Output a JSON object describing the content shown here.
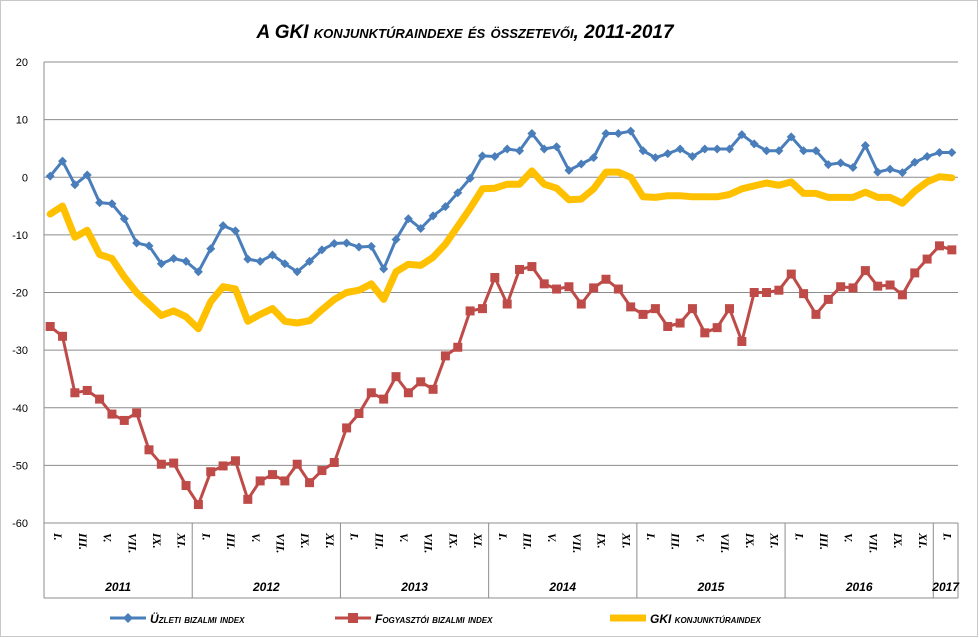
{
  "chart_data": {
    "type": "line",
    "title": "A GKI konjunktúraindexe és összetevői, 2011-2017",
    "ylim": [
      -60,
      20
    ],
    "yticks": [
      20,
      10,
      0,
      -10,
      -20,
      -30,
      -40,
      -50,
      -60
    ],
    "grid": true,
    "legend_position": "bottom",
    "month_labels": [
      "I.",
      "III.",
      "V.",
      "VII.",
      "IX.",
      "XI."
    ],
    "years": [
      "2011",
      "2012",
      "2013",
      "2014",
      "2015",
      "2016",
      "2017"
    ],
    "x": [
      "2011-01",
      "2011-02",
      "2011-03",
      "2011-04",
      "2011-05",
      "2011-06",
      "2011-07",
      "2011-08",
      "2011-09",
      "2011-10",
      "2011-11",
      "2011-12",
      "2012-01",
      "2012-02",
      "2012-03",
      "2012-04",
      "2012-05",
      "2012-06",
      "2012-07",
      "2012-08",
      "2012-09",
      "2012-10",
      "2012-11",
      "2012-12",
      "2013-01",
      "2013-02",
      "2013-03",
      "2013-04",
      "2013-05",
      "2013-06",
      "2013-07",
      "2013-08",
      "2013-09",
      "2013-10",
      "2013-11",
      "2013-12",
      "2014-01",
      "2014-02",
      "2014-03",
      "2014-04",
      "2014-05",
      "2014-06",
      "2014-07",
      "2014-08",
      "2014-09",
      "2014-10",
      "2014-11",
      "2014-12",
      "2015-01",
      "2015-02",
      "2015-03",
      "2015-04",
      "2015-05",
      "2015-06",
      "2015-07",
      "2015-08",
      "2015-09",
      "2015-10",
      "2015-11",
      "2015-12",
      "2016-01",
      "2016-02",
      "2016-03",
      "2016-04",
      "2016-05",
      "2016-06",
      "2016-07",
      "2016-08",
      "2016-09",
      "2016-10",
      "2016-11",
      "2016-12",
      "2017-01",
      "2017-02"
    ],
    "series": [
      {
        "name": "Üzleti bizalmi index",
        "color": "#4a7ebb",
        "marker": "diamond",
        "values": [
          0.2,
          2.8,
          -1.3,
          0.4,
          -4.4,
          -4.6,
          -7.2,
          -11.4,
          -11.9,
          -15.0,
          -14.1,
          -14.6,
          -16.4,
          -12.4,
          -8.4,
          -9.3,
          -14.2,
          -14.6,
          -13.5,
          -15.0,
          -16.4,
          -14.6,
          -12.6,
          -11.5,
          -11.4,
          -12.1,
          -12.0,
          -15.9,
          -10.8,
          -7.2,
          -8.9,
          -6.7,
          -5.1,
          -2.7,
          -0.2,
          3.7,
          3.6,
          4.9,
          4.6,
          7.6,
          4.9,
          5.3,
          1.2,
          2.3,
          3.4,
          7.6,
          7.6,
          8.0,
          4.6,
          3.4,
          4.1,
          4.9,
          3.6,
          4.9,
          4.9,
          4.9,
          7.4,
          5.8,
          4.6,
          4.6,
          7.0,
          4.6,
          4.6,
          2.2,
          2.5,
          1.7,
          5.5,
          0.9,
          1.4,
          0.8,
          2.6,
          3.6,
          4.3,
          4.3
        ]
      },
      {
        "name": "Fogyasztói bizalmi index",
        "color": "#be4b48",
        "marker": "square",
        "values": [
          -25.9,
          -27.6,
          -37.4,
          -37.0,
          -38.5,
          -41.1,
          -42.2,
          -40.9,
          -47.3,
          -49.8,
          -49.6,
          -53.5,
          -56.8,
          -51.1,
          -50.1,
          -49.2,
          -55.9,
          -52.7,
          -51.6,
          -52.7,
          -49.8,
          -53.0,
          -50.9,
          -49.5,
          -43.5,
          -41.0,
          -37.4,
          -38.5,
          -34.6,
          -37.4,
          -35.5,
          -36.8,
          -31.0,
          -29.5,
          -23.2,
          -22.8,
          -17.4,
          -22.0,
          -16.0,
          -15.5,
          -18.5,
          -19.4,
          -19.0,
          -22.0,
          -19.2,
          -17.7,
          -19.4,
          -22.5,
          -23.8,
          -22.8,
          -25.9,
          -25.3,
          -22.8,
          -27.0,
          -26.1,
          -22.8,
          -28.5,
          -20.0,
          -20.0,
          -19.6,
          -16.8,
          -20.2,
          -23.8,
          -21.2,
          -19.0,
          -19.2,
          -16.2,
          -18.9,
          -18.7,
          -20.4,
          -16.6,
          -14.2,
          -11.9,
          -12.6
        ]
      },
      {
        "name": "GKI konjunktúraindex",
        "color": "#ffc000",
        "marker": "none",
        "values": [
          -6.4,
          -5.0,
          -10.4,
          -9.2,
          -13.4,
          -14.1,
          -17.3,
          -20.0,
          -22.0,
          -24.0,
          -23.2,
          -24.2,
          -26.3,
          -21.6,
          -19.0,
          -19.4,
          -25.0,
          -23.8,
          -22.8,
          -25.0,
          -25.3,
          -24.9,
          -23.0,
          -21.2,
          -20.0,
          -19.6,
          -18.5,
          -21.2,
          -16.4,
          -15.1,
          -15.3,
          -13.9,
          -11.6,
          -8.5,
          -5.4,
          -2.0,
          -1.9,
          -1.2,
          -1.2,
          1.1,
          -1.2,
          -1.9,
          -3.9,
          -3.8,
          -2.0,
          0.9,
          0.9,
          0.0,
          -3.4,
          -3.5,
          -3.2,
          -3.2,
          -3.4,
          -3.4,
          -3.4,
          -3.0,
          -2.0,
          -1.5,
          -1.0,
          -1.4,
          -0.8,
          -2.8,
          -2.8,
          -3.5,
          -3.5,
          -3.5,
          -2.6,
          -3.5,
          -3.5,
          -4.5,
          -2.4,
          -0.8,
          0.1,
          -0.1
        ]
      }
    ]
  }
}
